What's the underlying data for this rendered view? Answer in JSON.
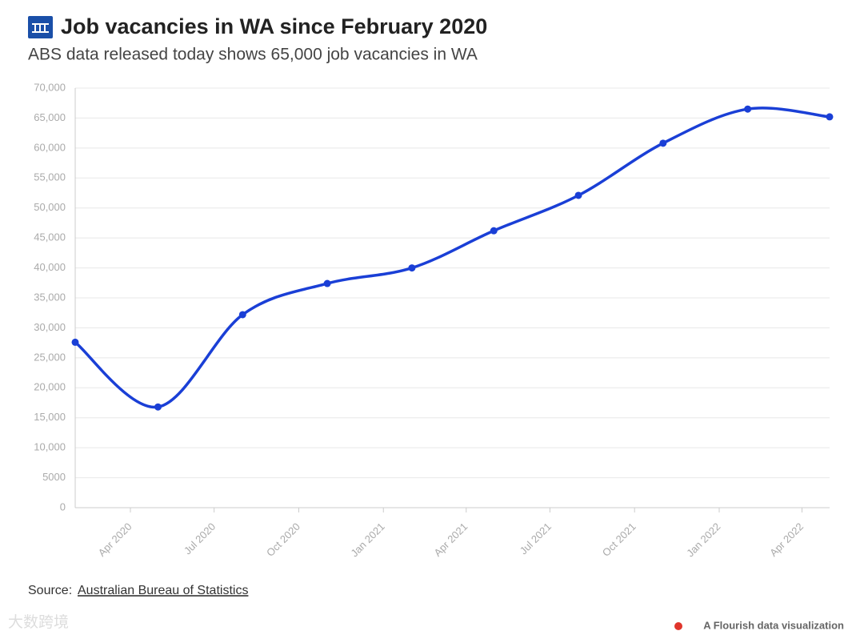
{
  "chart_data": {
    "type": "line",
    "title": "Job vacancies in WA since February 2020",
    "subtitle": "ABS data released today shows 65,000 job vacancies in WA",
    "x": [
      "Feb 2020",
      "May 2020",
      "Aug 2020",
      "Nov 2020",
      "Feb 2021",
      "May 2021",
      "Aug 2021",
      "Nov 2021",
      "Feb 2022",
      "May 2022"
    ],
    "series": [
      {
        "name": "Job vacancies",
        "color": "#1a3fd6",
        "values": [
          27600,
          16800,
          32200,
          37400,
          40000,
          46200,
          52100,
          60800,
          66500,
          65200
        ]
      }
    ],
    "xlim": [
      "Feb 2020",
      "May 2022"
    ],
    "xticks": [
      "Apr 2020",
      "Jul 2020",
      "Oct 2020",
      "Jan 2021",
      "Apr 2021",
      "Jul 2021",
      "Oct 2021",
      "Jan 2022",
      "Apr 2022"
    ],
    "ylim": [
      0,
      70000
    ],
    "yticks": [
      0,
      5000,
      {
        "value": 10000,
        "label": "10,000"
      },
      {
        "value": 15000,
        "label": "15,000"
      },
      {
        "value": 20000,
        "label": "20,000"
      },
      {
        "value": 25000,
        "label": "25,000"
      },
      {
        "value": 30000,
        "label": "30,000"
      },
      {
        "value": 35000,
        "label": "35,000"
      },
      {
        "value": 40000,
        "label": "40,000"
      },
      {
        "value": 45000,
        "label": "45,000"
      },
      {
        "value": 50000,
        "label": "50,000"
      },
      {
        "value": 55000,
        "label": "55,000"
      },
      {
        "value": 60000,
        "label": "60,000"
      },
      {
        "value": 65000,
        "label": "65,000"
      },
      {
        "value": 70000,
        "label": "70,000"
      }
    ],
    "grid": true,
    "source_label": "Source:",
    "source_link": "Australian Bureau of Statistics",
    "credit": "A Flourish data visualization",
    "watermark": "大数跨境"
  }
}
